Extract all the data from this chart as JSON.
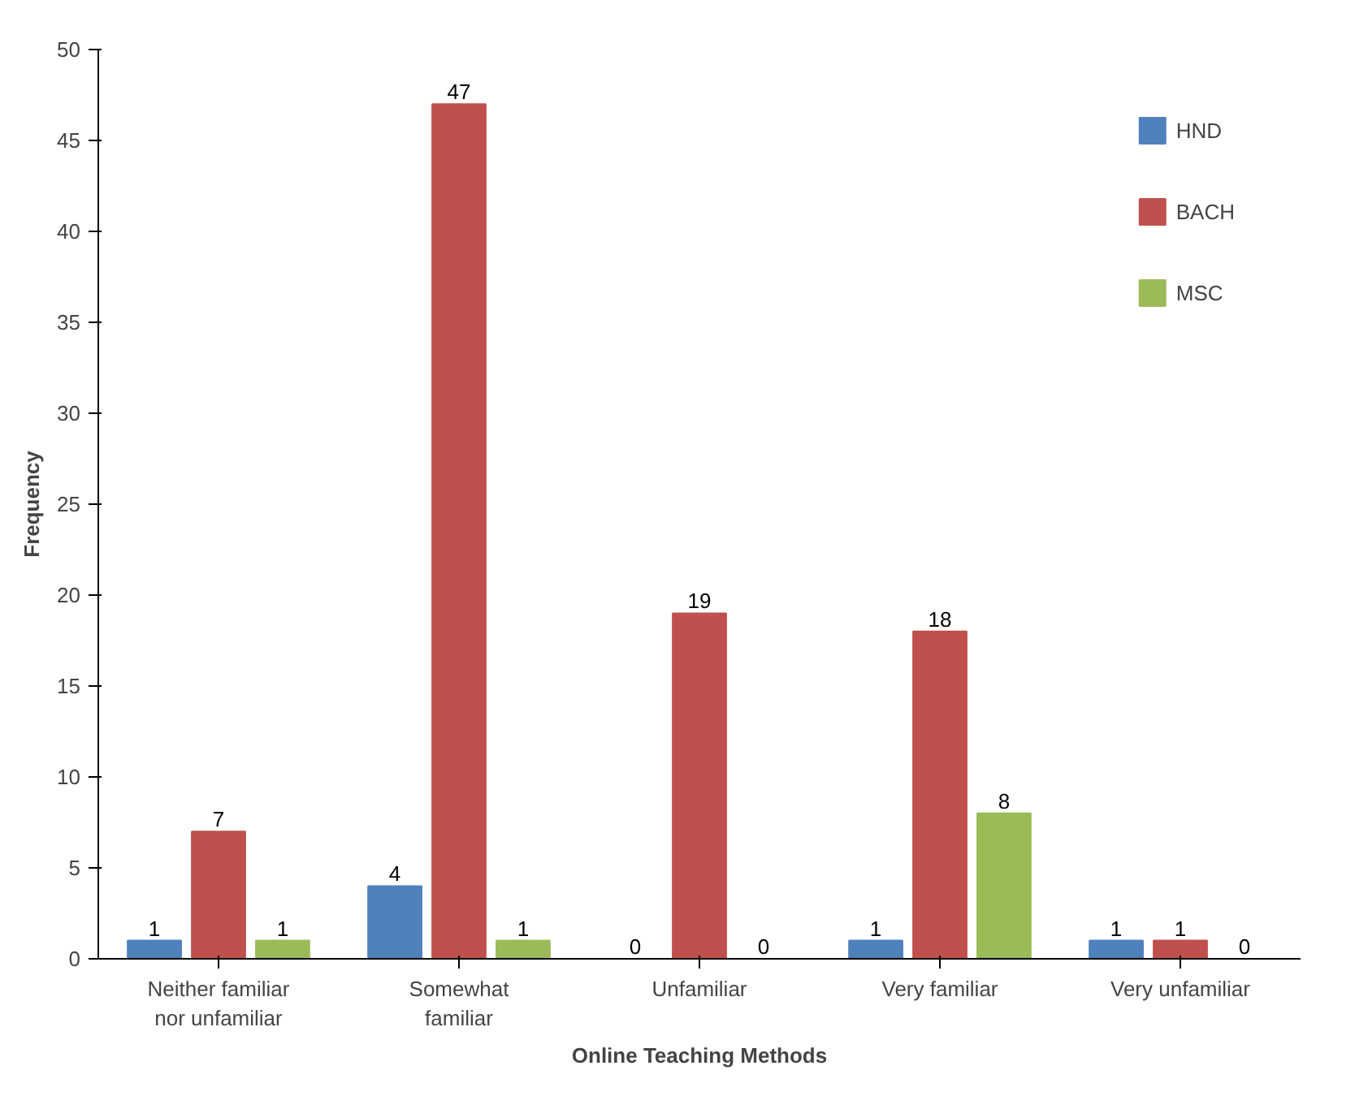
{
  "chart_data": {
    "type": "bar",
    "xlabel": "Online Teaching Methods",
    "ylabel": "Frequency",
    "categories": [
      "Neither familiar nor unfamiliar",
      "Somewhat familiar",
      "Unfamiliar",
      "Very familiar",
      "Very unfamiliar"
    ],
    "series": [
      {
        "name": "HND",
        "color": "#4f81bd",
        "values": [
          1,
          4,
          0,
          1,
          1
        ]
      },
      {
        "name": "BACH",
        "color": "#c0504d",
        "values": [
          7,
          47,
          19,
          18,
          1
        ]
      },
      {
        "name": "MSC",
        "color": "#9bbb59",
        "values": [
          1,
          1,
          0,
          8,
          0
        ]
      }
    ],
    "ylim": [
      0,
      50
    ],
    "yticks": [
      0,
      5,
      10,
      15,
      20,
      25,
      30,
      35,
      40,
      45,
      50
    ],
    "data_labels": true,
    "grid": false,
    "legend": "top right"
  }
}
